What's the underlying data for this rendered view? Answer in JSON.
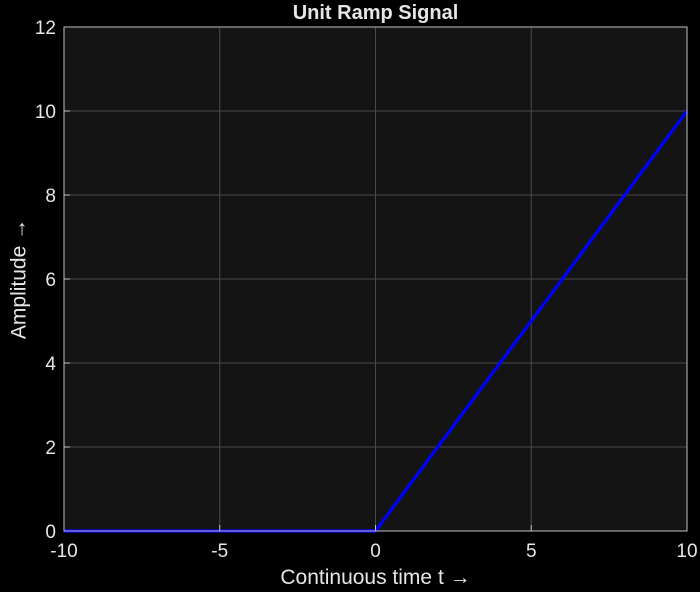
{
  "chart_data": {
    "type": "line",
    "title": "Unit Ramp Signal",
    "xlabel": "Continuous time t →",
    "ylabel": "Amplitude →",
    "xlim": [
      -10,
      10
    ],
    "ylim": [
      0,
      12
    ],
    "xticks": [
      -10,
      -5,
      0,
      5,
      10
    ],
    "xtick_labels": [
      "-10",
      "-5",
      "0",
      "5",
      "10"
    ],
    "yticks": [
      0,
      2,
      4,
      6,
      8,
      10,
      12
    ],
    "ytick_labels": [
      "0",
      "2",
      "4",
      "6",
      "8",
      "10",
      "12"
    ],
    "grid": true,
    "series": [
      {
        "color": "#0000ff",
        "x": [
          -10,
          0,
          10
        ],
        "y": [
          0,
          0,
          10
        ]
      }
    ]
  },
  "colors": {
    "figure_background": "#000000",
    "axes_background": "#141414",
    "grid": "#4a4a4a",
    "axis_frame": "#bfbfbf",
    "text": "#e6e6e6",
    "series": "#0000ff"
  }
}
